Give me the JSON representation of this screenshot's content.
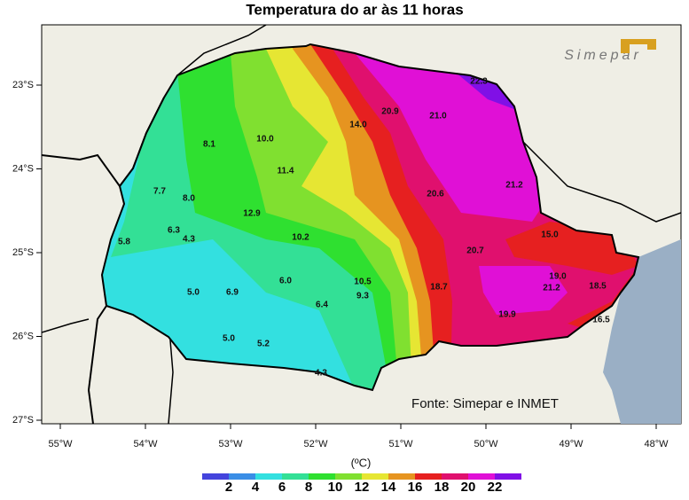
{
  "title": "Temperatura do ar às 11 horas",
  "logo": "Simepar",
  "source": "Fonte: Simepar e INMET",
  "lon_labels": [
    "55°W",
    "54°W",
    "53°W",
    "52°W",
    "51°W",
    "50°W",
    "49°W",
    "48°W"
  ],
  "lat_labels": [
    "23°S",
    "24°S",
    "25°S",
    "26°S",
    "27°S"
  ],
  "stations": [
    "22.3",
    "8.1",
    "10.0",
    "14.0",
    "20.9",
    "21.0",
    "7.7",
    "8.0",
    "11.4",
    "20.6",
    "21.2",
    "12.9",
    "6.3",
    "4.3",
    "10.2",
    "5.8",
    "20.7",
    "15.0",
    "19.0",
    "21.2",
    "18.5",
    "5.0",
    "6.9",
    "6.0",
    "10.5",
    "9.3",
    "18.7",
    "6.4",
    "19.9",
    "16.5",
    "5.0",
    "5.2",
    "4.3"
  ],
  "colorbar": {
    "unit": "(ºC)",
    "ticks": [
      2,
      4,
      6,
      8,
      10,
      12,
      14,
      16,
      18,
      20,
      22
    ],
    "colors": [
      "#4444dd",
      "#3a8ee6",
      "#33e0e0",
      "#33e096",
      "#2fe030",
      "#80e030",
      "#e6e633",
      "#e69420",
      "#e62020",
      "#e0106e",
      "#e010d6",
      "#8010e6"
    ]
  }
}
